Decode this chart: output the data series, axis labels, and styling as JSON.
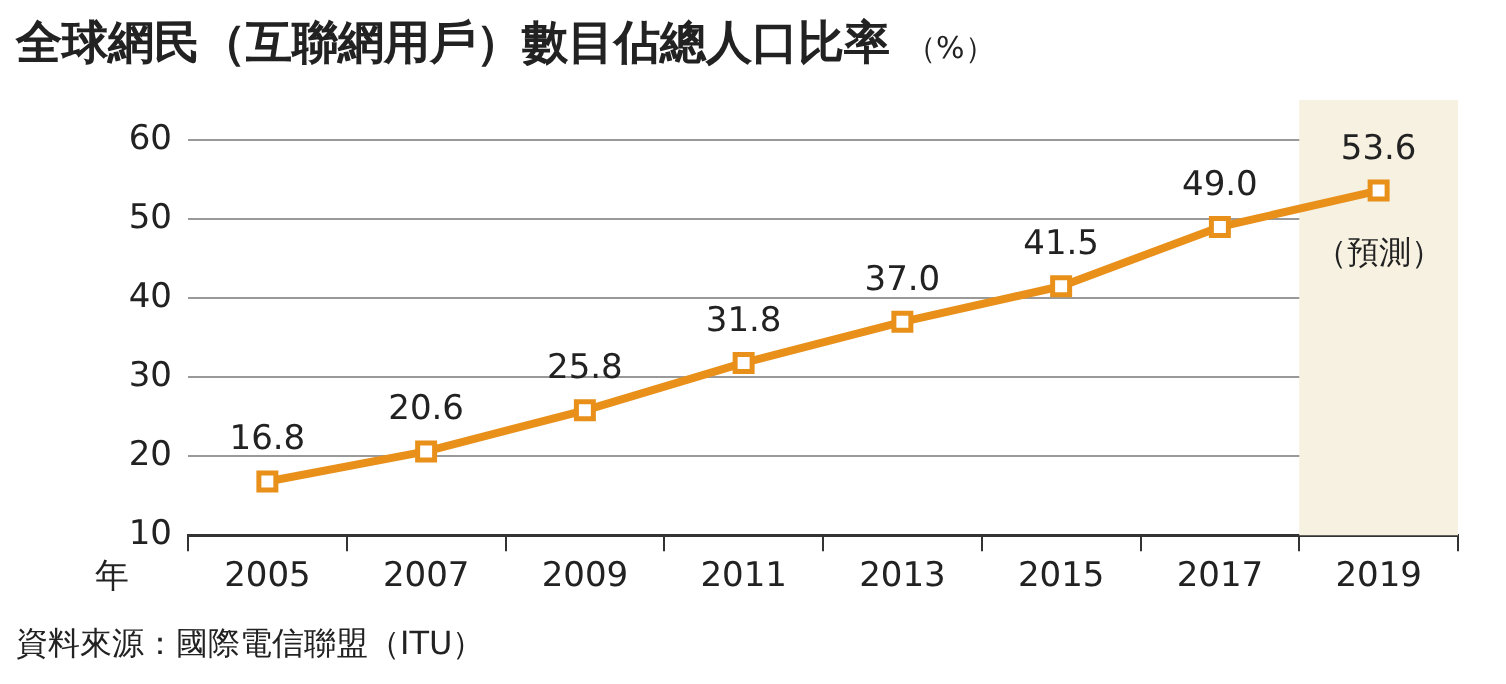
{
  "chart_data": {
    "type": "line",
    "title": "全球網民（互聯網用戶）數目佔總人口比率",
    "subtitle": "（%）",
    "xlabel": "年",
    "categories": [
      "2005",
      "2007",
      "2009",
      "2011",
      "2013",
      "2015",
      "2017",
      "2019"
    ],
    "series": [
      {
        "color": "#e8901a",
        "values": [
          16.8,
          20.6,
          25.8,
          31.8,
          37.0,
          41.5,
          49.0,
          53.6
        ],
        "value_labels": [
          "16.8",
          "20.6",
          "25.8",
          "31.8",
          "37.0",
          "41.5",
          "49.0",
          "53.6"
        ]
      }
    ],
    "ylim": [
      10,
      60
    ],
    "yticks": [
      10,
      20,
      30,
      40,
      50,
      60
    ],
    "grid": "y",
    "marker": "square",
    "line_style": "solid",
    "legend": false,
    "bands": [
      {
        "axis": "x",
        "from": "2019",
        "to": "2019",
        "label": "（預測）",
        "color": "#f6f1e0"
      }
    ],
    "annotations": [
      "資料來源：國際電信聯盟（ITU）"
    ]
  }
}
